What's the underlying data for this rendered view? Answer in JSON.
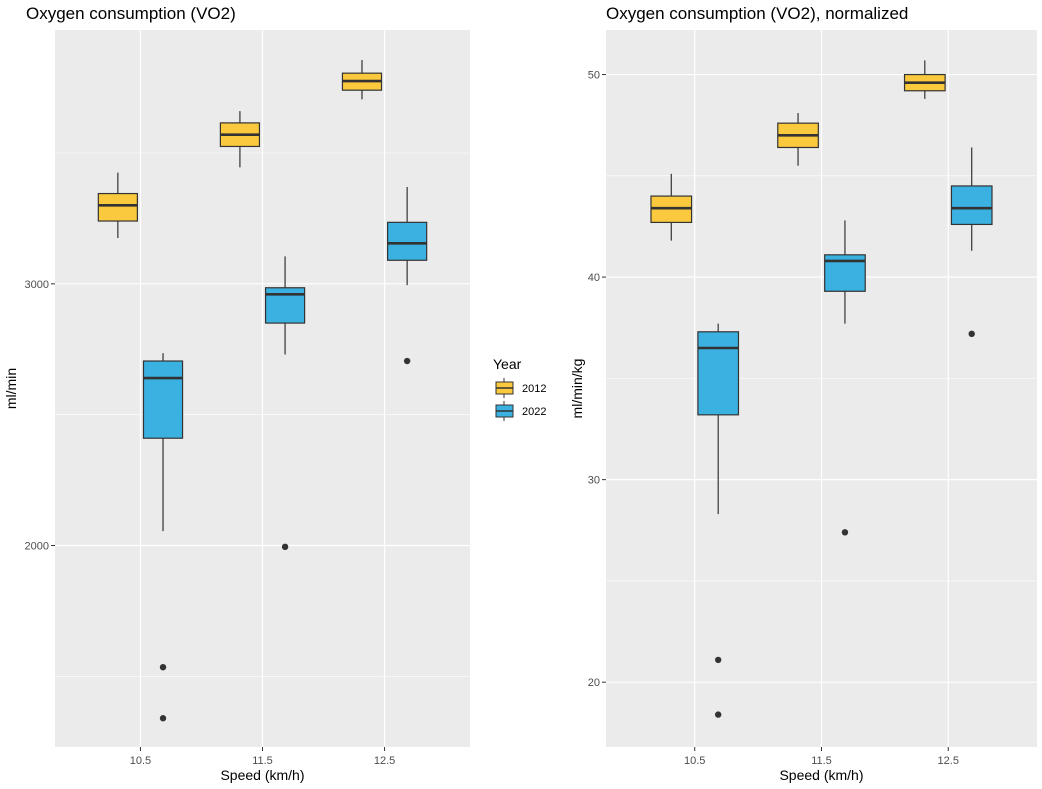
{
  "chart_data": [
    {
      "type": "boxplot",
      "title": "Oxygen consumption (VO2)",
      "xlabel": "Speed (km/h)",
      "ylabel": "ml/min",
      "x_ticks": [
        "10.5",
        "11.5",
        "12.5"
      ],
      "y_ticks": [
        2000,
        3000
      ],
      "ylim": [
        1230,
        3970
      ],
      "x_range": [
        9.8,
        13.2
      ],
      "grid": true,
      "series": [
        {
          "name": "2012",
          "boxes": [
            {
              "x": "10.5",
              "min": 3175,
              "q1": 3240,
              "median": 3300,
              "q3": 3345,
              "max": 3425,
              "outliers": []
            },
            {
              "x": "11.5",
              "min": 3445,
              "q1": 3525,
              "median": 3570,
              "q3": 3615,
              "max": 3660,
              "outliers": []
            },
            {
              "x": "12.5",
              "min": 3705,
              "q1": 3740,
              "median": 3775,
              "q3": 3805,
              "max": 3855,
              "outliers": []
            }
          ]
        },
        {
          "name": "2022",
          "boxes": [
            {
              "x": "10.5",
              "min": 2055,
              "q1": 2410,
              "median": 2640,
              "q3": 2705,
              "max": 2735,
              "outliers": [
                1535,
                1340
              ]
            },
            {
              "x": "11.5",
              "min": 2730,
              "q1": 2850,
              "median": 2960,
              "q3": 2985,
              "max": 3105,
              "outliers": [
                1995
              ]
            },
            {
              "x": "12.5",
              "min": 2995,
              "q1": 3090,
              "median": 3155,
              "q3": 3235,
              "max": 3370,
              "outliers": [
                2705
              ]
            }
          ]
        }
      ]
    },
    {
      "type": "boxplot",
      "title": "Oxygen consumption (VO2), normalized",
      "xlabel": "Speed (km/h)",
      "ylabel": "ml/min/kg",
      "x_ticks": [
        "10.5",
        "11.5",
        "12.5"
      ],
      "y_ticks": [
        20,
        30,
        40,
        50
      ],
      "ylim": [
        16.8,
        52.2
      ],
      "x_range": [
        9.8,
        13.2
      ],
      "grid": true,
      "series": [
        {
          "name": "2012",
          "boxes": [
            {
              "x": "10.5",
              "min": 41.8,
              "q1": 42.7,
              "median": 43.4,
              "q3": 44.0,
              "max": 45.1,
              "outliers": []
            },
            {
              "x": "11.5",
              "min": 45.5,
              "q1": 46.4,
              "median": 47.0,
              "q3": 47.6,
              "max": 48.1,
              "outliers": []
            },
            {
              "x": "12.5",
              "min": 48.8,
              "q1": 49.2,
              "median": 49.6,
              "q3": 50.0,
              "max": 50.7,
              "outliers": []
            }
          ]
        },
        {
          "name": "2022",
          "boxes": [
            {
              "x": "10.5",
              "min": 28.3,
              "q1": 33.2,
              "median": 36.5,
              "q3": 37.3,
              "max": 37.7,
              "outliers": [
                21.1,
                18.4
              ]
            },
            {
              "x": "11.5",
              "min": 37.7,
              "q1": 39.3,
              "median": 40.8,
              "q3": 41.1,
              "max": 42.8,
              "outliers": [
                27.4
              ]
            },
            {
              "x": "12.5",
              "min": 41.3,
              "q1": 42.6,
              "median": 43.4,
              "q3": 44.5,
              "max": 46.4,
              "outliers": [
                37.2
              ]
            }
          ]
        }
      ]
    }
  ],
  "legend": {
    "title": "Year",
    "placement": "between panels, middle",
    "items": [
      {
        "label": "2012",
        "color": "#FBC93D"
      },
      {
        "label": "2022",
        "color": "#3AB1E1"
      }
    ]
  },
  "colors": {
    "panel_background": "#EBEBEB",
    "grid": "#FFFFFF",
    "box_outline": "#333333"
  }
}
